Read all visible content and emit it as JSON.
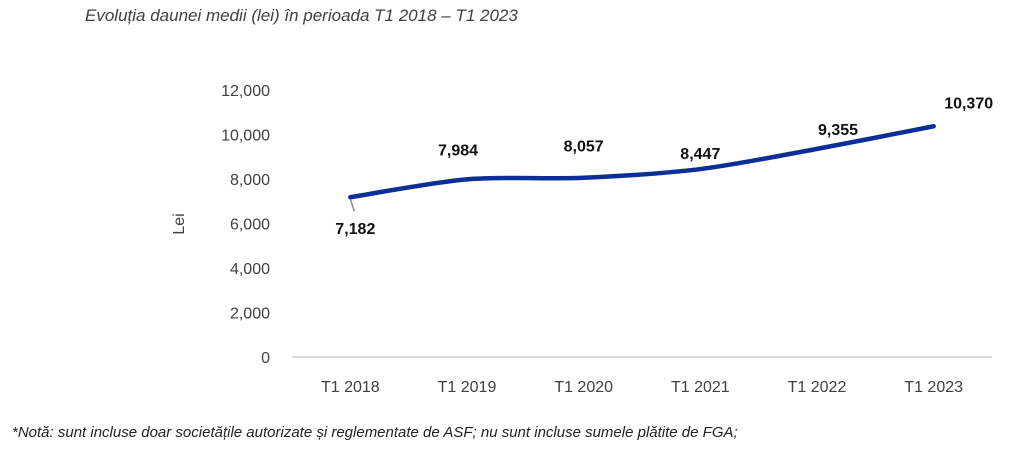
{
  "chart_data": {
    "type": "line",
    "title": "Evoluția daunei medii (lei) în perioada T1 2018 – T1 2023",
    "xlabel": "",
    "ylabel": "Lei",
    "categories": [
      "T1 2018",
      "T1 2019",
      "T1 2020",
      "T1 2021",
      "T1 2022",
      "T1 2023"
    ],
    "series": [
      {
        "values": [
          7182,
          7984,
          8057,
          8447,
          9355,
          10370
        ],
        "color": "#0b2f97"
      }
    ],
    "data_labels": [
      "7,182",
      "7,984",
      "8,057",
      "8,447",
      "9,355",
      "10,370"
    ],
    "ylim": [
      0,
      12000
    ],
    "yticks": [
      0,
      2000,
      4000,
      6000,
      8000,
      10000,
      12000
    ],
    "ytick_labels": [
      "0",
      "2,000",
      "4,000",
      "6,000",
      "8,000",
      "10,000",
      "12,000"
    ],
    "grid": false,
    "legend": "none"
  },
  "note": "*Notă: sunt incluse doar societățile autorizate și reglementate de ASF; nu sunt incluse sumele plătite de FGA;"
}
